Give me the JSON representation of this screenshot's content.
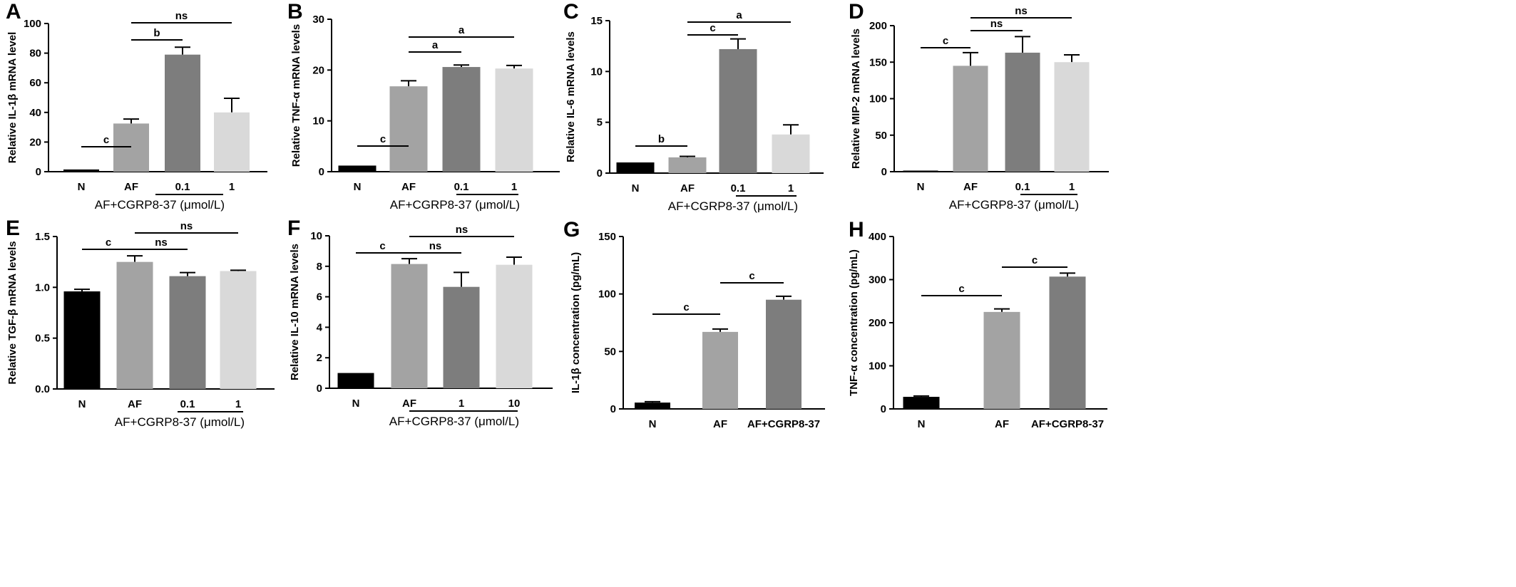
{
  "colors": {
    "N": "#000000",
    "AF": "#a3a3a3",
    "dose1": "#7d7d7d",
    "dose2": "#d9d9d9"
  },
  "chart_data": [
    {
      "panel": "A",
      "type": "bar",
      "ylabel": "Relative IL-1β mRNA level",
      "ylim": [
        0,
        100
      ],
      "yticks": [
        "0",
        "20",
        "40",
        "60",
        "80",
        "100"
      ],
      "categories": [
        "N",
        "AF",
        "0.1",
        "1"
      ],
      "values": [
        1.5,
        32.5,
        79,
        40
      ],
      "errors": [
        0,
        3,
        5,
        9.5
      ],
      "group_label": "AF+CGRP8-37 (μmol/L)",
      "annotations": [
        {
          "from": "N",
          "to": "AF",
          "text": "c"
        },
        {
          "from": "AF",
          "to": "0.1",
          "text": "b"
        },
        {
          "from": "AF",
          "to": "1",
          "text": "ns"
        }
      ]
    },
    {
      "panel": "B",
      "type": "bar",
      "ylabel": "Relative TNF-α mRNA levels",
      "ylim": [
        0,
        30
      ],
      "yticks": [
        "0",
        "10",
        "20",
        "30"
      ],
      "categories": [
        "N",
        "AF",
        "0.1",
        "1"
      ],
      "values": [
        1.2,
        16.8,
        20.6,
        20.3
      ],
      "errors": [
        0,
        1.1,
        0.4,
        0.6
      ],
      "group_label": "AF+CGRP8-37 (μmol/L)",
      "annotations": [
        {
          "from": "N",
          "to": "AF",
          "text": "c"
        },
        {
          "from": "AF",
          "to": "0.1",
          "text": "a"
        },
        {
          "from": "AF",
          "to": "1",
          "text": "a"
        }
      ]
    },
    {
      "panel": "C",
      "type": "bar",
      "ylabel": "Relative IL-6 mRNA levels",
      "ylim": [
        0,
        15
      ],
      "yticks": [
        "0",
        "5",
        "10",
        "15"
      ],
      "categories": [
        "N",
        "AF",
        "0.1",
        "1"
      ],
      "values": [
        1.05,
        1.55,
        12.2,
        3.8
      ],
      "errors": [
        0,
        0.1,
        1.0,
        0.95
      ],
      "group_label": "AF+CGRP8-37 (μmol/L)",
      "annotations": [
        {
          "from": "N",
          "to": "AF",
          "text": "b"
        },
        {
          "from": "AF",
          "to": "0.1",
          "text": "c"
        },
        {
          "from": "AF",
          "to": "1",
          "text": "a"
        }
      ]
    },
    {
      "panel": "D",
      "type": "bar",
      "ylabel": "Relative MIP-2 mRNA levels",
      "ylim": [
        0,
        200
      ],
      "yticks": [
        "0",
        "50",
        "100",
        "150",
        "200"
      ],
      "categories": [
        "N",
        "AF",
        "0.1",
        "1"
      ],
      "values": [
        1.5,
        145,
        163,
        150
      ],
      "errors": [
        0,
        18,
        22,
        10
      ],
      "group_label": "AF+CGRP8-37 (μmol/L)",
      "annotations": [
        {
          "from": "N",
          "to": "AF",
          "text": "c"
        },
        {
          "from": "AF",
          "to": "0.1",
          "text": "ns"
        },
        {
          "from": "AF",
          "to": "1",
          "text": "ns"
        }
      ]
    },
    {
      "panel": "E",
      "type": "bar",
      "ylabel": "Relative TGF-β mRNA levels",
      "ylim": [
        0,
        1.5
      ],
      "yticks": [
        "0.0",
        "0.5",
        "1.0",
        "1.5"
      ],
      "categories": [
        "N",
        "AF",
        "0.1",
        "1"
      ],
      "values": [
        0.96,
        1.25,
        1.11,
        1.16
      ],
      "errors": [
        0.02,
        0.06,
        0.035,
        0.008
      ],
      "group_label": "AF+CGRP8-37 (μmol/L)",
      "annotations": [
        {
          "from": "N",
          "to": "AF",
          "text": "c"
        },
        {
          "from": "AF",
          "to": "0.1",
          "text": "ns"
        },
        {
          "from": "AF",
          "to": "1",
          "text": "ns"
        }
      ]
    },
    {
      "panel": "F",
      "type": "bar",
      "ylabel": "Relative IL-10 mRNA levels",
      "ylim": [
        0,
        10
      ],
      "yticks": [
        "0",
        "2",
        "4",
        "6",
        "8",
        "10"
      ],
      "categories": [
        "N",
        "AF",
        "1",
        "10"
      ],
      "values": [
        1.0,
        8.15,
        6.65,
        8.1
      ],
      "errors": [
        0,
        0.35,
        0.95,
        0.5
      ],
      "group_label": "AF+CGRP8-37 (μmol/L)",
      "annotations": [
        {
          "from": "N",
          "to": "AF",
          "text": "c"
        },
        {
          "from": "AF",
          "to": "1",
          "text": "ns"
        },
        {
          "from": "AF",
          "to": "10",
          "text": "ns"
        }
      ]
    },
    {
      "panel": "G",
      "type": "bar",
      "ylabel": "IL-1β concentration (pg/mL)",
      "ylim": [
        0,
        150
      ],
      "yticks": [
        "0",
        "50",
        "100",
        "150"
      ],
      "categories": [
        "N",
        "AF",
        "AF+CGRP8-37"
      ],
      "values": [
        5.5,
        67,
        95
      ],
      "errors": [
        0.8,
        2.5,
        3
      ],
      "group_label": "",
      "annotations": [
        {
          "from": "N",
          "to": "AF",
          "text": "c"
        },
        {
          "from": "AF",
          "to": "AF+CGRP8-37",
          "text": "c"
        }
      ]
    },
    {
      "panel": "H",
      "type": "bar",
      "ylabel": "TNF-α concentration (pg/mL)",
      "ylim": [
        0,
        400
      ],
      "yticks": [
        "0",
        "100",
        "200",
        "300",
        "400"
      ],
      "categories": [
        "N",
        "AF",
        "AF+CGRP8-37"
      ],
      "values": [
        28,
        225,
        307
      ],
      "errors": [
        2,
        7,
        8
      ],
      "group_label": "",
      "annotations": [
        {
          "from": "N",
          "to": "AF",
          "text": "c"
        },
        {
          "from": "AF",
          "to": "AF+CGRP8-37",
          "text": "c"
        }
      ]
    }
  ]
}
